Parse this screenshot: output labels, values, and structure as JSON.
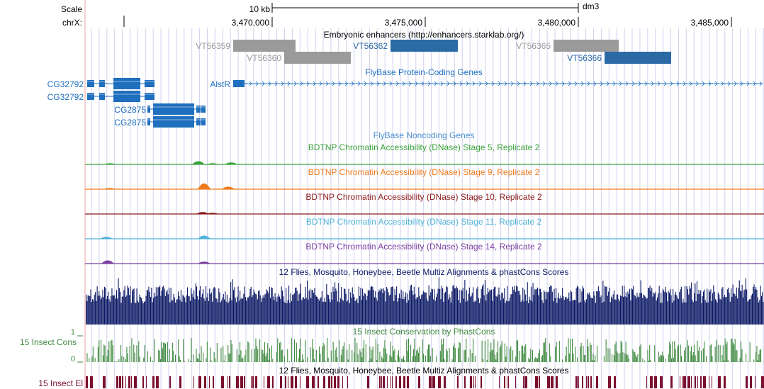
{
  "ruler": {
    "scale_label": "Scale",
    "chrom_label": "chrX:",
    "scale_bar_label": "10 kb",
    "assembly": "dm3",
    "ticks": [
      "3,470,000",
      "3,475,000",
      "3,480,000",
      "3,485,000"
    ]
  },
  "tracks": {
    "enhancers": {
      "title": "Embryonic enhancers (http://enhancers.starklab.org/)",
      "items": [
        {
          "name": "VT56359",
          "shade": "grey"
        },
        {
          "name": "VT56360",
          "shade": "grey"
        },
        {
          "name": "VT56362",
          "shade": "blue"
        },
        {
          "name": "VT56365",
          "shade": "grey"
        },
        {
          "name": "VT56366",
          "shade": "blue"
        }
      ]
    },
    "genes": {
      "title": "FlyBase Protein-Coding Genes",
      "items": [
        {
          "name": "CG32792"
        },
        {
          "name": "CG32792"
        },
        {
          "name": "CG2875"
        },
        {
          "name": "CG2875"
        },
        {
          "name": "AlstR"
        }
      ]
    },
    "noncoding": {
      "title": "FlyBase Noncoding Genes"
    },
    "dnase": [
      {
        "title": "BDTNP Chromatin Accessibility (DNase) Stage 5, Replicate 2",
        "color": "#3aa33a"
      },
      {
        "title": "BDTNP Chromatin Accessibility (DNase) Stage 9, Replicate 2",
        "color": "#f07a1a"
      },
      {
        "title": "BDTNP Chromatin Accessibility (DNase) Stage 10, Replicate 2",
        "color": "#8b1a1a"
      },
      {
        "title": "BDTNP Chromatin Accessibility (DNase) Stage 11, Replicate 2",
        "color": "#4fb3d9"
      },
      {
        "title": "BDTNP Chromatin Accessibility (DNase) Stage 14, Replicate 2",
        "color": "#7b3fa0"
      }
    ],
    "multiz": {
      "title": "12 Flies, Mosquito, Honeybee, Beetle Multiz Alignments & phastCons Scores",
      "color": "#0c1a66"
    },
    "phastcons": {
      "title": "15 Insect Conservation by PhastCons",
      "side_label": "15 Insect Cons",
      "axis_max": "1",
      "axis_min": "0",
      "color": "#3f8a3f"
    },
    "elements": {
      "title": "12 Flies, Mosquito, Honeybee, Beetle Multiz Alignments & phastCons Scores",
      "side_label": "15 Insect El",
      "color": "#7a0f2e"
    }
  },
  "colors": {
    "blue": "#1f6fbf",
    "dark_blue": "#2c6aa6",
    "grey": "#9a9a9a",
    "guide": "#d0d0f0"
  }
}
